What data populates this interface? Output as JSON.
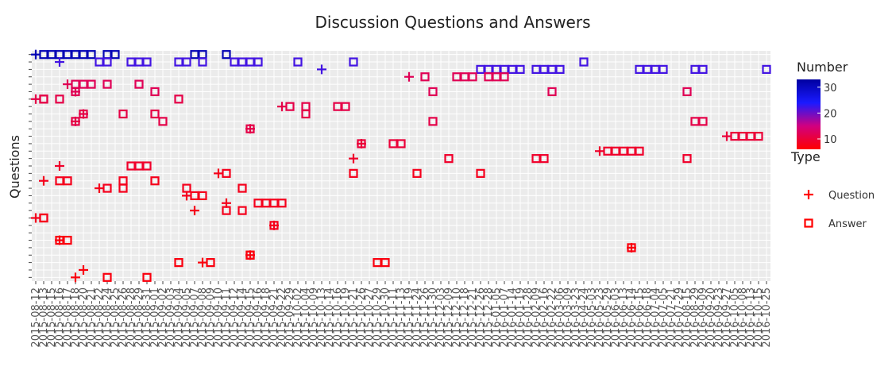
{
  "chart_data": {
    "type": "scatter",
    "title": "Discussion Questions and Answers",
    "xlabel": "",
    "ylabel": "Questions",
    "x_categories": [
      "2015-08-12",
      "2015-08-13",
      "2015-08-15",
      "2015-08-16",
      "2015-08-17",
      "2015-08-18",
      "2015-08-20",
      "2015-08-21",
      "2015-08-22",
      "2015-08-24",
      "2015-08-25",
      "2015-08-26",
      "2015-08-28",
      "2015-08-29",
      "2015-08-31",
      "2015-09-01",
      "2015-09-02",
      "2015-09-03",
      "2015-09-04",
      "2015-09-05",
      "2015-09-07",
      "2015-09-08",
      "2015-09-09",
      "2015-09-10",
      "2015-09-11",
      "2015-09-12",
      "2015-09-14",
      "2015-09-15",
      "2015-09-16",
      "2015-09-18",
      "2015-09-21",
      "2015-09-22",
      "2015-09-29",
      "2015-10-02",
      "2015-10-04",
      "2015-10-09",
      "2015-10-13",
      "2015-10-14",
      "2015-10-16",
      "2015-10-19",
      "2015-10-21",
      "2015-10-26",
      "2015-10-27",
      "2015-10-29",
      "2015-10-30",
      "2015-11-11",
      "2015-11-13",
      "2015-11-19",
      "2015-11-24",
      "2015-11-26",
      "2015-11-30",
      "2015-12-03",
      "2015-12-09",
      "2015-12-10",
      "2015-12-18",
      "2015-12-21",
      "2015-12-26",
      "2015-12-28",
      "2016-01-05",
      "2016-01-07",
      "2016-01-14",
      "2016-01-19",
      "2016-01-28",
      "2016-02-09",
      "2016-02-16",
      "2016-02-22",
      "2016-03-06",
      "2016-03-09",
      "2016-03-23",
      "2016-04-24",
      "2016-05-03",
      "2016-05-23",
      "2016-05-29",
      "2016-06-03",
      "2016-06-13",
      "2016-06-14",
      "2016-06-15",
      "2016-06-18",
      "2016-07-04",
      "2016-07-05",
      "2016-07-21",
      "2016-07-29",
      "2016-08-15",
      "2016-08-29",
      "2016-09-09",
      "2016-09-20",
      "2016-09-23",
      "2016-09-27",
      "2016-10-05",
      "2016-10-08",
      "2016-10-13",
      "2016-10-15",
      "2016-10-25"
    ],
    "x_tick_labels": [
      "2015-08-12",
      "2015-08-13",
      "2015-08-15",
      "2015-08-16",
      "2015-08-17",
      "2015-08-18",
      "2015-08-20",
      "2015-08-21",
      "2015-08-22",
      "2015-08-24",
      "2015-08-25",
      "2015-08-26",
      "2015-08-28",
      "2015-08-29",
      "2015-08-31",
      "2015-09-01",
      "2015-09-02",
      "2015-09-03",
      "2015-09-04",
      "2015-09-05",
      "2015-09-07",
      "2015-09-08",
      "2015-09-09",
      "2015-09-10",
      "2015-09-11",
      "2015-09-12",
      "2015-09-14",
      "2015-09-15",
      "2015-09-16",
      "2015-09-18",
      "2015-09-21",
      "2015-09-22",
      "2015-09-29",
      "2015-10-02",
      "2015-10-04",
      "2015-10-09",
      "2015-10-13",
      "2015-10-14",
      "2015-10-16",
      "2015-10-19",
      "2015-10-21",
      "2015-10-26",
      "2015-10-27",
      "2015-10-29",
      "2015-10-30",
      "2015-11-11",
      "2015-11-13",
      "2015-11-19",
      "2015-11-24",
      "2015-11-26",
      "2015-11-30",
      "2015-12-03",
      "2015-12-09",
      "2015-12-10",
      "2015-12-18",
      "2015-12-21",
      "2015-12-26",
      "2015-12-28",
      "2016-01-05",
      "2016-01-07",
      "2016-01-14",
      "2016-01-19",
      "2016-01-28",
      "2016-02-09",
      "2016-02-16",
      "2016-02-22",
      "2016-03-06",
      "2016-03-09",
      "2016-03-23",
      "2016-04-24",
      "2016-05-03",
      "2016-05-23",
      "2016-05-29",
      "2016-06-03",
      "2016-06-13",
      "2016-06-14",
      "2016-06-15",
      "2016-06-18",
      "2016-07-04",
      "2016-07-05",
      "2016-07-21",
      "2016-07-29",
      "2016-08-15",
      "2016-08-29",
      "2016-09-09",
      "2016-09-20",
      "2016-09-23",
      "2016-09-27",
      "2016-10-05",
      "2016-10-08",
      "2016-10-13",
      "2016-10-15",
      "2016-10-25"
    ],
    "y_tick_count": 31,
    "grid": true,
    "legend": {
      "colorbar_title": "Number",
      "colorbar_ticks": [
        10,
        20,
        30
      ],
      "colorbar_range": [
        6,
        33
      ],
      "colorbar_colors": [
        "#ff0000",
        "#d10080",
        "#1a1aff",
        "#0000a0"
      ],
      "type_title": "Type",
      "type_entries": [
        {
          "label": "Question",
          "symbol": "cross",
          "color": "#ff0000"
        },
        {
          "label": "Answer",
          "symbol": "square",
          "color": "#ff0000"
        }
      ],
      "position": "right"
    },
    "questions": [
      {
        "row": 1,
        "number": 31,
        "x": "2015-08-12",
        "answers": [
          "2015-08-13",
          "2015-08-15",
          "2015-08-16",
          "2015-08-17",
          "2015-08-18",
          "2015-08-20",
          "2015-08-21",
          "2015-08-24",
          "2015-08-25",
          "2015-09-07",
          "2015-09-08",
          "2015-09-11"
        ]
      },
      {
        "row": 2,
        "number": 22,
        "x": "2015-08-16",
        "answers": [
          "2015-08-22",
          "2015-08-24",
          "2015-08-28",
          "2015-08-29",
          "2015-08-31",
          "2015-09-04",
          "2015-09-05",
          "2015-09-08",
          "2015-09-12",
          "2015-09-14",
          "2015-09-15",
          "2015-09-16",
          "2015-10-02",
          "2015-10-21",
          "2016-04-24"
        ]
      },
      {
        "row": 3,
        "number": 22,
        "x": "2015-10-13",
        "answers": [
          "2015-12-26",
          "2015-12-28",
          "2016-01-05",
          "2016-01-07",
          "2016-01-14",
          "2016-01-19",
          "2016-02-09",
          "2016-02-16",
          "2016-02-22",
          "2016-03-06",
          "2016-06-15",
          "2016-06-18",
          "2016-07-04",
          "2016-07-05",
          "2016-08-29",
          "2016-09-09",
          "2016-10-25"
        ]
      },
      {
        "row": 4,
        "number": 12,
        "x": "2015-11-19",
        "answers": [
          "2015-11-26",
          "2015-12-10",
          "2015-12-18",
          "2015-12-21",
          "2015-12-28",
          "2016-01-05",
          "2016-01-07"
        ]
      },
      {
        "row": 5,
        "number": 12,
        "x": "2015-08-17",
        "answers": [
          "2015-08-18",
          "2015-08-20",
          "2015-08-21",
          "2015-08-24",
          "2015-08-29"
        ]
      },
      {
        "row": 6,
        "number": 12,
        "x": "2015-08-18",
        "answers": [
          "2015-08-18",
          "2015-09-01",
          "2015-11-30",
          "2016-02-22",
          "2016-08-15"
        ]
      },
      {
        "row": 7,
        "number": 11,
        "x": "2015-08-12",
        "answers": [
          "2015-08-13",
          "2015-08-13",
          "2015-08-16",
          "2015-09-04"
        ]
      },
      {
        "row": 8,
        "number": 11,
        "x": "2015-09-22",
        "answers": [
          "2015-09-29",
          "2015-10-04",
          "2015-10-16",
          "2015-10-19"
        ]
      },
      {
        "row": 9,
        "number": 11,
        "x": "2015-08-20",
        "answers": [
          "2015-08-20",
          "2015-08-26",
          "2015-09-01",
          "2015-10-04"
        ]
      },
      {
        "row": 10,
        "number": 11,
        "x": "2015-08-18",
        "answers": [
          "2015-08-18",
          "2015-09-02",
          "2015-11-30",
          "2016-08-29",
          "2016-09-09"
        ]
      },
      {
        "row": 11,
        "number": 11,
        "x": "2015-09-15",
        "answers": [
          "2015-09-15"
        ]
      },
      {
        "row": 12,
        "number": 10,
        "x": "2016-09-27",
        "answers": [
          "2016-10-05",
          "2016-10-08",
          "2016-10-13",
          "2016-10-15"
        ]
      },
      {
        "row": 13,
        "number": 10,
        "x": "2015-10-26",
        "answers": [
          "2015-10-26",
          "2015-11-11",
          "2015-11-13"
        ]
      },
      {
        "row": 14,
        "number": 9,
        "x": "2016-05-23",
        "answers": [
          "2016-05-29",
          "2016-06-03",
          "2016-06-13",
          "2016-06-14",
          "2016-06-15"
        ]
      },
      {
        "row": 15,
        "number": 9,
        "x": "2015-10-21",
        "answers": [
          "2015-12-09",
          "2016-02-09",
          "2016-02-16",
          "2016-08-15"
        ]
      },
      {
        "row": 16,
        "number": 9,
        "x": "2015-08-16",
        "answers": [
          "2015-08-28",
          "2015-08-29",
          "2015-08-31"
        ]
      },
      {
        "row": 17,
        "number": 8,
        "x": "2015-09-10",
        "answers": [
          "2015-09-11",
          "2015-10-21",
          "2015-11-24",
          "2015-12-26"
        ]
      },
      {
        "row": 18,
        "number": 8,
        "x": "2015-08-13",
        "answers": [
          "2015-08-16",
          "2015-08-17",
          "2015-08-26",
          "2015-09-01"
        ]
      },
      {
        "row": 19,
        "number": 8,
        "x": "2015-08-22",
        "answers": [
          "2015-08-24",
          "2015-08-26",
          "2015-09-05",
          "2015-09-14"
        ]
      },
      {
        "row": 20,
        "number": 8,
        "x": "2015-09-05",
        "answers": [
          "2015-09-07",
          "2015-09-08"
        ]
      },
      {
        "row": 21,
        "number": 8,
        "x": "2015-09-11",
        "answers": [
          "2015-09-16",
          "2015-09-18",
          "2015-09-21",
          "2015-09-22"
        ]
      },
      {
        "row": 22,
        "number": 8,
        "x": "2015-09-07",
        "answers": [
          "2015-09-11",
          "2015-09-14"
        ]
      },
      {
        "row": 23,
        "number": 8,
        "x": "2015-08-12",
        "answers": [
          "2015-08-13",
          "2015-08-13"
        ]
      },
      {
        "row": 24,
        "number": 8,
        "x": "2015-09-21",
        "answers": [
          "2015-09-21"
        ]
      },
      {
        "row": 26,
        "number": 7,
        "x": "2015-08-16",
        "answers": [
          "2015-08-16",
          "2015-08-17"
        ]
      },
      {
        "row": 27,
        "number": 7,
        "x": "2016-06-14",
        "answers": [
          "2016-06-14"
        ]
      },
      {
        "row": 28,
        "number": 7,
        "x": "2015-09-15",
        "answers": [
          "2015-09-15",
          "2015-09-15"
        ]
      },
      {
        "row": 29,
        "number": 7,
        "x": "2015-09-08",
        "answers": [
          "2015-09-09",
          "2015-09-04",
          "2015-10-29",
          "2015-10-30"
        ]
      },
      {
        "row": 30,
        "number": 7,
        "x": "2015-08-20",
        "answers": []
      },
      {
        "row": 31,
        "number": 7,
        "x": "2015-08-18",
        "answers": [
          "2015-08-24",
          "2015-08-31"
        ]
      }
    ]
  }
}
